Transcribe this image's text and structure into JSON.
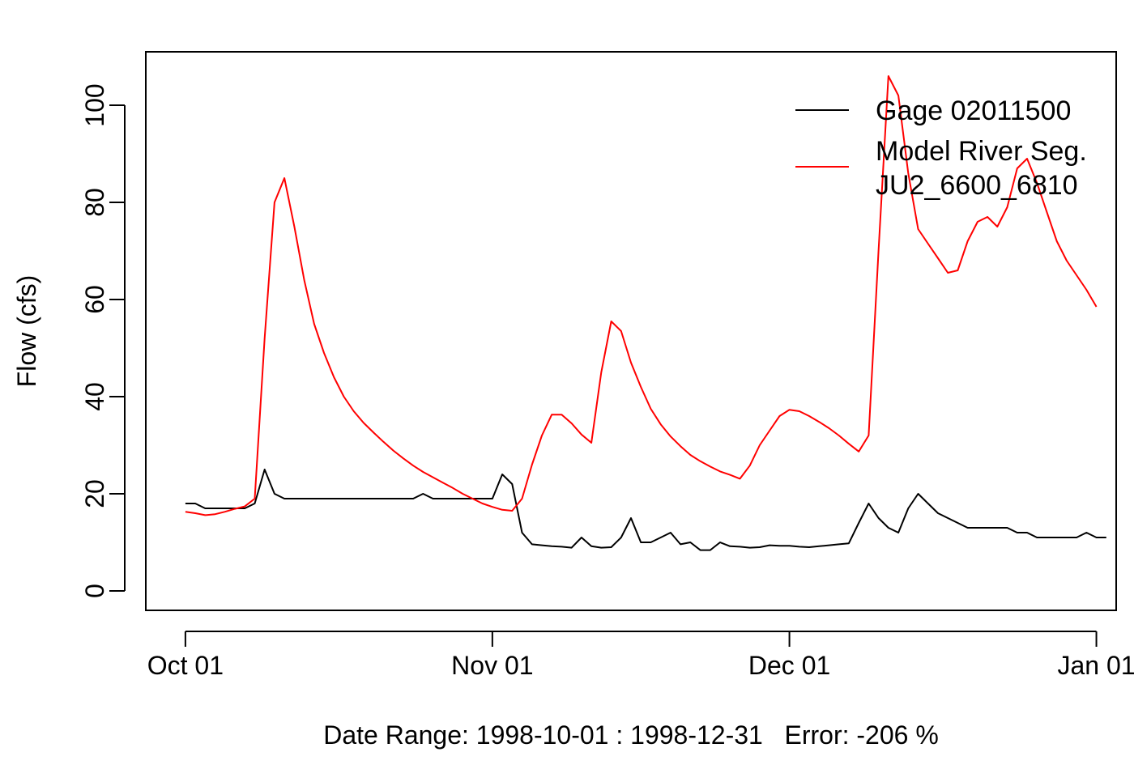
{
  "chart_data": {
    "type": "line",
    "title": "",
    "xlabel": "Date Range: 1998-10-01 : 1998-12-31   Error: -206 %",
    "ylabel": "Flow (cfs)",
    "xlim": [
      "1998-09-27",
      "1999-01-03"
    ],
    "ylim": [
      -4,
      111
    ],
    "x_ticks": [
      {
        "date": "1998-10-01",
        "label": "Oct 01"
      },
      {
        "date": "1998-11-01",
        "label": "Nov 01"
      },
      {
        "date": "1998-12-01",
        "label": "Dec 01"
      },
      {
        "date": "1999-01-01",
        "label": "Jan 01"
      }
    ],
    "y_ticks": [
      0,
      20,
      40,
      60,
      80,
      100
    ],
    "grid": false,
    "legend": {
      "position": "top-right",
      "entries": [
        {
          "label": "Gage 02011500",
          "color": "#000000"
        },
        {
          "label": "Model River Seg.\n JU2_6600_6810",
          "color": "#ff0000"
        }
      ]
    },
    "series": [
      {
        "name": "Gage 02011500",
        "color": "#000000",
        "start_date": "1998-10-01",
        "interval_days": 1,
        "values": [
          18,
          18,
          17,
          17,
          17,
          17,
          17,
          18,
          25,
          20,
          19,
          19,
          19,
          19,
          19,
          19,
          19,
          19,
          19,
          19,
          19,
          19,
          19,
          19,
          20,
          19,
          19,
          19,
          19,
          19,
          19,
          19,
          24,
          22,
          12,
          9.6,
          9.4,
          9.2,
          9.1,
          8.9,
          11,
          9.2,
          8.9,
          9,
          11,
          15,
          10,
          10,
          11,
          12,
          9.6,
          10,
          8.4,
          8.4,
          10,
          9.2,
          9.1,
          8.9,
          9,
          9.4,
          9.3,
          9.3,
          9.1,
          9,
          9.2,
          9.4,
          9.6,
          9.8,
          14,
          18,
          15,
          13,
          12,
          17,
          20,
          18,
          16,
          15,
          14,
          13,
          13,
          13,
          13,
          13,
          12,
          12,
          11,
          11,
          11,
          11,
          11,
          12,
          11,
          11
        ]
      },
      {
        "name": "Model River Seg.\n JU2_6600_6810",
        "color": "#ff0000",
        "start_date": "1998-10-01",
        "interval_days": 1,
        "values": [
          16.3,
          16,
          15.6,
          15.8,
          16.3,
          16.9,
          17.4,
          19,
          52,
          80,
          85,
          75,
          64,
          55,
          49,
          44,
          40,
          37,
          34.6,
          32.6,
          30.7,
          28.9,
          27.3,
          25.8,
          24.5,
          23.4,
          22.3,
          21.2,
          20,
          19,
          18,
          17.3,
          16.7,
          16.5,
          19,
          26,
          32,
          36.3,
          36.3,
          34.5,
          32.2,
          30.5,
          45,
          55.5,
          53.5,
          47,
          42,
          37.5,
          34.3,
          31.8,
          29.8,
          28,
          26.7,
          25.6,
          24.6,
          23.9,
          23.1,
          25.8,
          30,
          33,
          36,
          37.3,
          37,
          36,
          34.8,
          33.5,
          32,
          30.3,
          28.7,
          32,
          70,
          106,
          102,
          86,
          74.5,
          71.5,
          68.5,
          65.5,
          66,
          72,
          76,
          77,
          75,
          79,
          87,
          89,
          84,
          78,
          72,
          68,
          65,
          62,
          58.5
        ]
      }
    ]
  }
}
